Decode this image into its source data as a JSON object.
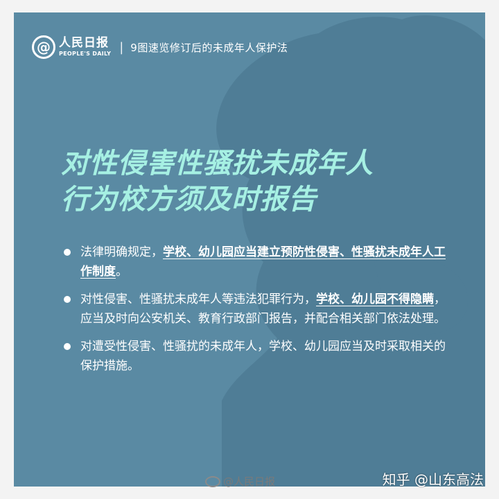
{
  "brand": {
    "logo_symbol": "@",
    "logo_cn": "人民日报",
    "logo_en": "PEOPLE'S DAILY",
    "separator": "|",
    "series_title": "9图速览修订后的未成年人保护法"
  },
  "headline": {
    "line1": "对性侵害性骚扰未成年人",
    "line2": "行为校方须及时报告"
  },
  "bullets": [
    {
      "pre": "法律明确规定，",
      "em": "学校、幼儿园应当建立预防性侵害、性骚扰未成年人工作制度",
      "post": "。"
    },
    {
      "pre": "对性侵害、性骚扰未成年人等违法犯罪行为，",
      "em": "学校、幼儿园不得隐瞒",
      "post": "，应当及时向公安机关、教育行政部门报告，并配合相关部门依法处理。"
    },
    {
      "pre": "对遭受性侵害、性骚扰的未成年人，学校、幼儿园应当及时采取相关的保护措施。",
      "em": "",
      "post": ""
    }
  ],
  "watermarks": {
    "weibo": "@人民日报",
    "zhihu": "知乎 @山东高法"
  },
  "colors": {
    "background": "#5a8aa3",
    "silhouette": "#4f7d96",
    "headline": "#a6f0e3"
  }
}
